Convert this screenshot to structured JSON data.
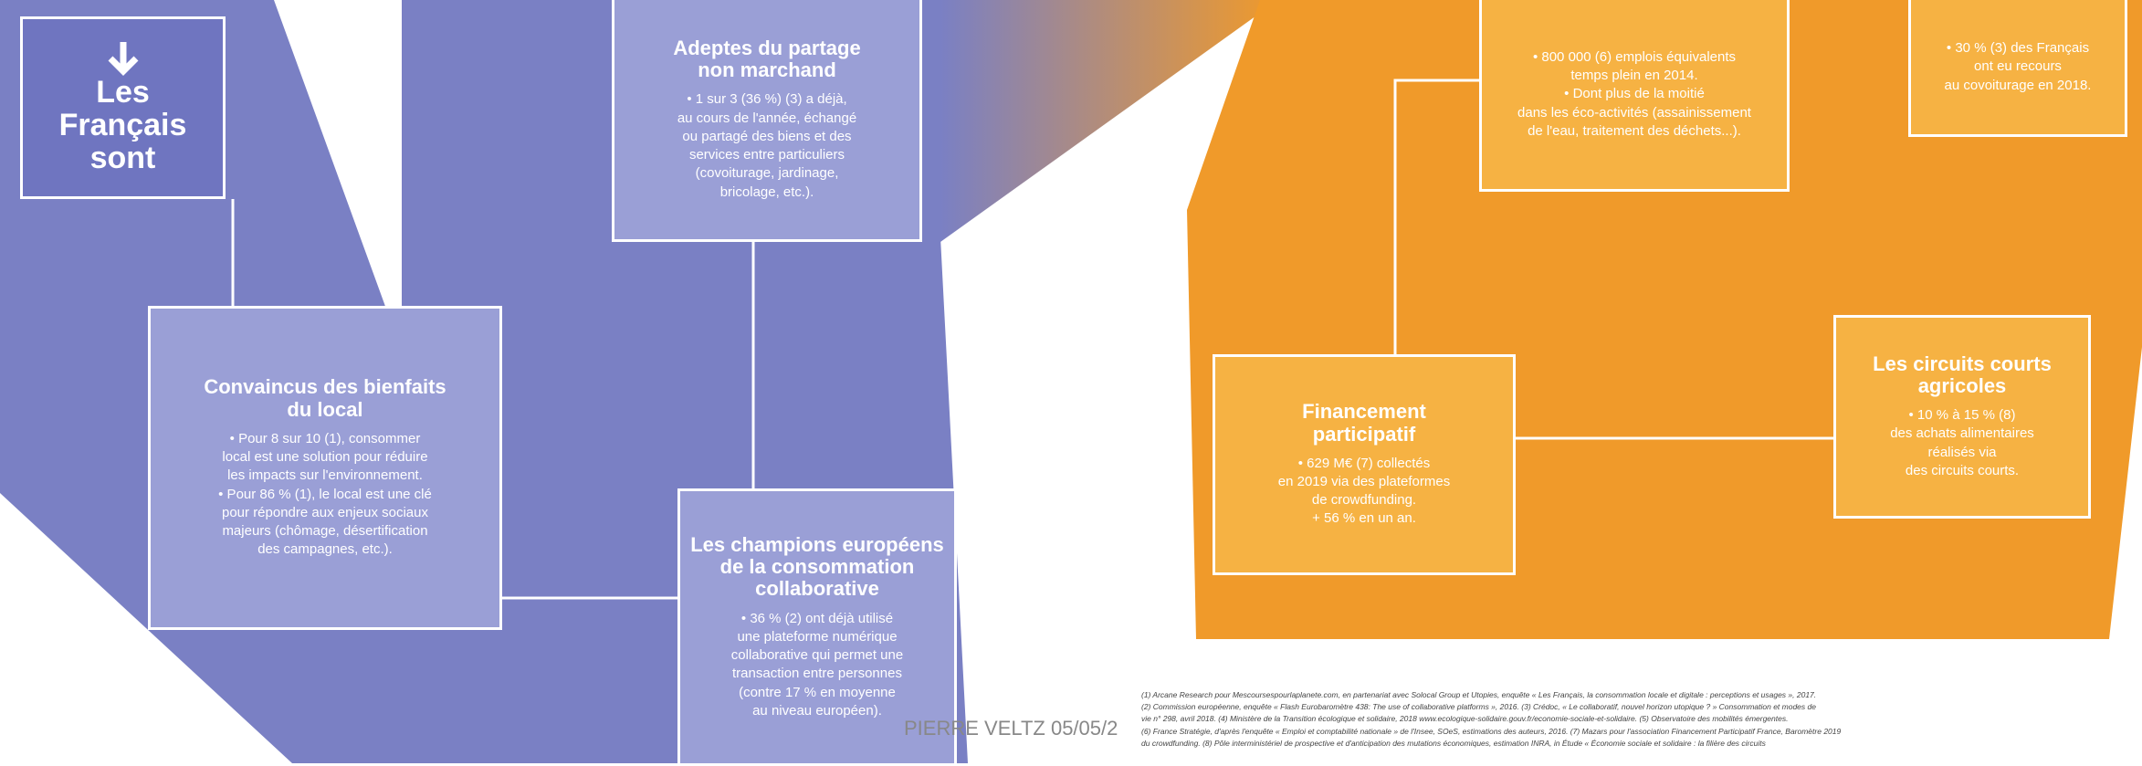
{
  "blocks": {
    "francais": {
      "lines": [
        "Les",
        "Français",
        "sont"
      ]
    },
    "partage": {
      "title": [
        "Adeptes du partage",
        "non marchand"
      ],
      "body": [
        "• 1 sur 3 (36 %) (3) a déjà,",
        "au cours de l'année, échangé",
        "ou partagé des biens et des",
        "services entre particuliers",
        "(covoiturage, jardinage,",
        "bricolage, etc.)."
      ]
    },
    "local": {
      "title": [
        "Convaincus des bienfaits",
        "du local"
      ],
      "body": [
        "• Pour 8 sur 10 (1), consommer",
        "local est une solution pour réduire",
        "les impacts sur l'environnement.",
        "• Pour 86 % (1), le local est une clé",
        "pour répondre aux enjeux sociaux",
        "majeurs (chômage, désertification",
        "des campagnes, etc.)."
      ]
    },
    "champions": {
      "title": [
        "Les champions européens",
        "de la consommation",
        "collaborative"
      ],
      "body": [
        "• 36 % (2) ont déjà utilisé",
        "une plateforme numérique",
        "collaborative qui permet une",
        "transaction entre personnes",
        "(contre 17 % en moyenne",
        "au niveau européen)."
      ]
    },
    "emplois": {
      "body": [
        "• 800 000 (6) emplois équivalents",
        "temps plein en 2014.",
        "• Dont plus de la moitié",
        "dans les éco-activités (assainissement",
        "de l'eau, traitement des déchets...)."
      ]
    },
    "covoiturage": {
      "body": [
        "• 30 % (3) des Français",
        "ont eu recours",
        "au covoiturage en 2018."
      ]
    },
    "financement": {
      "title": [
        "Financement",
        "participatif"
      ],
      "body": [
        "• 629 M€ (7) collectés",
        "en 2019 via des plateformes",
        "de crowdfunding.",
        "+ 56 % en un an."
      ]
    },
    "circuits": {
      "title": [
        "Les circuits courts",
        "agricoles"
      ],
      "body": [
        "• 10 % à 15 % (8)",
        "des achats alimentaires",
        "réalisés via",
        "des circuits courts."
      ]
    }
  },
  "footnotes": [
    "(1) Arcane Research pour Mescoursespourlaplanete.com, en partenariat avec Solocal Group et Utopies, enquête « Les Français, la consommation locale et digitale : perceptions et usages », 2017.",
    "(2) Commission européenne, enquête « Flash Eurobaromètre 438: The use of collaborative platforms », 2016. (3) Crédoc, « Le collaboratif, nouvel horizon utopique ? » Consommation et modes de",
    "vie n° 298, avril 2018. (4) Ministère de la Transition écologique et solidaire, 2018 www.ecologique-solidaire.gouv.fr/economie-sociale-et-solidaire. (5) Observatoire des mobilités émergentes.",
    "(6) France Stratégie, d'après l'enquête « Emploi et comptabilité nationale » de l'Insee, SOeS, estimations des auteurs, 2016. (7) Mazars pour l'association Financement Participatif France, Baromètre 2019",
    "du crowdfunding. (8) Pôle interministériel de prospective et d'anticipation des mutations économiques, estimation INRA, in Étude « Économie sociale et solidaire : la filière des circuits"
  ],
  "watermark": "PIERRE VELTZ 05/05/2"
}
